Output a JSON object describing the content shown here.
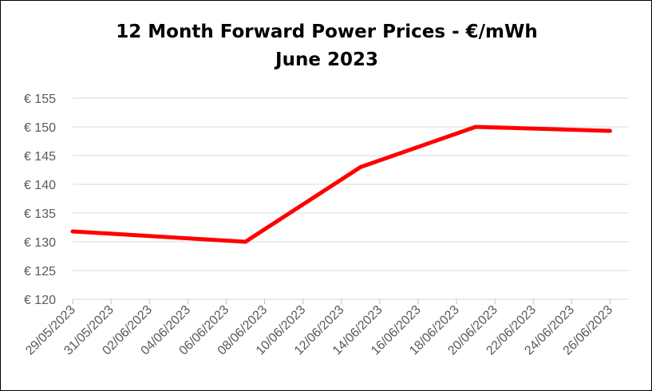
{
  "chart_data": {
    "type": "line",
    "title": "12 Month Forward Power Prices - €/mWh",
    "subtitle": "June 2023",
    "xlabel": "",
    "ylabel": "",
    "categories": [
      "29/05/2023",
      "31/05/2023",
      "02/06/2023",
      "04/06/2023",
      "06/06/2023",
      "08/06/2023",
      "10/06/2023",
      "12/06/2023",
      "14/06/2023",
      "16/06/2023",
      "18/06/2023",
      "20/06/2023",
      "22/06/2023",
      "24/06/2023",
      "26/06/2023"
    ],
    "y_tick_labels": [
      "€ 120",
      "€ 125",
      "€ 130",
      "€ 135",
      "€ 140",
      "€ 145",
      "€ 150",
      "€ 155"
    ],
    "ylim": [
      120,
      155
    ],
    "grid": true,
    "legend": "none",
    "series": [
      {
        "color": "#ff0000",
        "points": [
          {
            "x": "29/05/2023",
            "y": 131.8
          },
          {
            "x": "07/06/2023",
            "y": 130.0
          },
          {
            "x": "13/06/2023",
            "y": 143.0
          },
          {
            "x": "19/06/2023",
            "y": 150.0
          },
          {
            "x": "26/06/2023",
            "y": 149.3
          }
        ]
      }
    ],
    "colors": {
      "gridline": "#d9d9d9",
      "tick_label": "#595959",
      "axis": "#bfbfbf"
    }
  }
}
